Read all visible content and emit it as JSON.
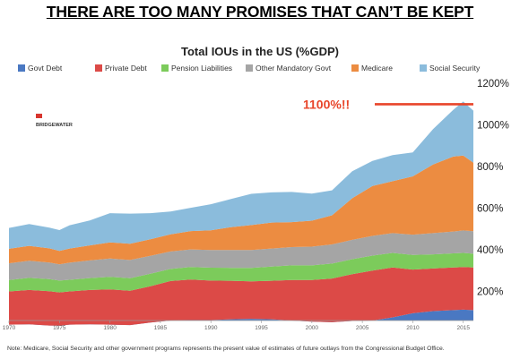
{
  "headline": "THERE ARE TOO MANY PROMISES THAT CAN’T BE KEPT",
  "note": "Note: Medicare, Social Security and other government programs represents the present value of estimates of future outlays from the Congressional Budget Office.",
  "logo_text": "BRIDGEWATER",
  "annotation": {
    "label": "1100%!!",
    "value": 1100,
    "color": "#e8452a"
  },
  "chart_data": {
    "type": "area",
    "stacked": true,
    "title": "Total IOUs in the US (%GDP)",
    "xlabel": "",
    "ylabel": "",
    "xlim": [
      1970,
      2016
    ],
    "ylim": [
      0,
      1200
    ],
    "x_ticks": [
      1970,
      1975,
      1980,
      1985,
      1990,
      1995,
      2000,
      2005,
      2010,
      2015
    ],
    "x_tick_labels": [
      "1970",
      "1975",
      "1980",
      "1985",
      "1990",
      "1995",
      "2000",
      "2005",
      "2010",
      "2015"
    ],
    "y_ticks": [
      200,
      400,
      600,
      800,
      1000,
      1200
    ],
    "y_tick_labels": [
      "200%",
      "400%",
      "600%",
      "800%",
      "1000%",
      "1200%"
    ],
    "y_axis_side": "right",
    "grid": false,
    "legend_position": "top",
    "x": [
      1970,
      1972,
      1974,
      1975,
      1976,
      1978,
      1980,
      1982,
      1984,
      1986,
      1988,
      1990,
      1992,
      1994,
      1996,
      1998,
      2000,
      2002,
      2004,
      2006,
      2008,
      2010,
      2012,
      2014,
      2015,
      2016
    ],
    "series": [
      {
        "name": "Govt Debt",
        "color": "#4a78c2",
        "values": [
          40,
          42,
          36,
          35,
          40,
          42,
          40,
          38,
          50,
          60,
          62,
          62,
          66,
          68,
          66,
          60,
          55,
          52,
          58,
          60,
          75,
          95,
          105,
          110,
          112,
          110
        ]
      },
      {
        "name": "Private Debt",
        "color": "#dc4a47",
        "values": [
          160,
          165,
          165,
          160,
          160,
          165,
          170,
          165,
          175,
          190,
          195,
          190,
          185,
          180,
          185,
          195,
          200,
          210,
          225,
          240,
          240,
          210,
          205,
          205,
          205,
          205
        ]
      },
      {
        "name": "Pension Liabilities",
        "color": "#7ccb5b",
        "values": [
          55,
          58,
          58,
          57,
          56,
          57,
          60,
          60,
          60,
          58,
          60,
          62,
          62,
          65,
          68,
          70,
          70,
          72,
          72,
          72,
          70,
          70,
          68,
          68,
          68,
          66
        ]
      },
      {
        "name": "Other Mandatory Govt",
        "color": "#a5a5a5",
        "values": [
          80,
          82,
          80,
          78,
          82,
          85,
          88,
          88,
          86,
          84,
          85,
          85,
          86,
          86,
          87,
          88,
          90,
          92,
          93,
          95,
          95,
          98,
          102,
          105,
          108,
          108
        ]
      },
      {
        "name": "Medicare",
        "color": "#ec8c41",
        "values": [
          70,
          72,
          68,
          65,
          68,
          72,
          78,
          78,
          80,
          82,
          88,
          95,
          110,
          120,
          125,
          120,
          125,
          140,
          200,
          240,
          250,
          280,
          330,
          360,
          360,
          330
        ]
      },
      {
        "name": "Social Security",
        "color": "#8bbcdc",
        "values": [
          100,
          105,
          100,
          100,
          112,
          120,
          140,
          145,
          125,
          110,
          112,
          125,
          135,
          150,
          145,
          145,
          130,
          120,
          130,
          120,
          125,
          115,
          170,
          225,
          260,
          250
        ]
      }
    ]
  }
}
